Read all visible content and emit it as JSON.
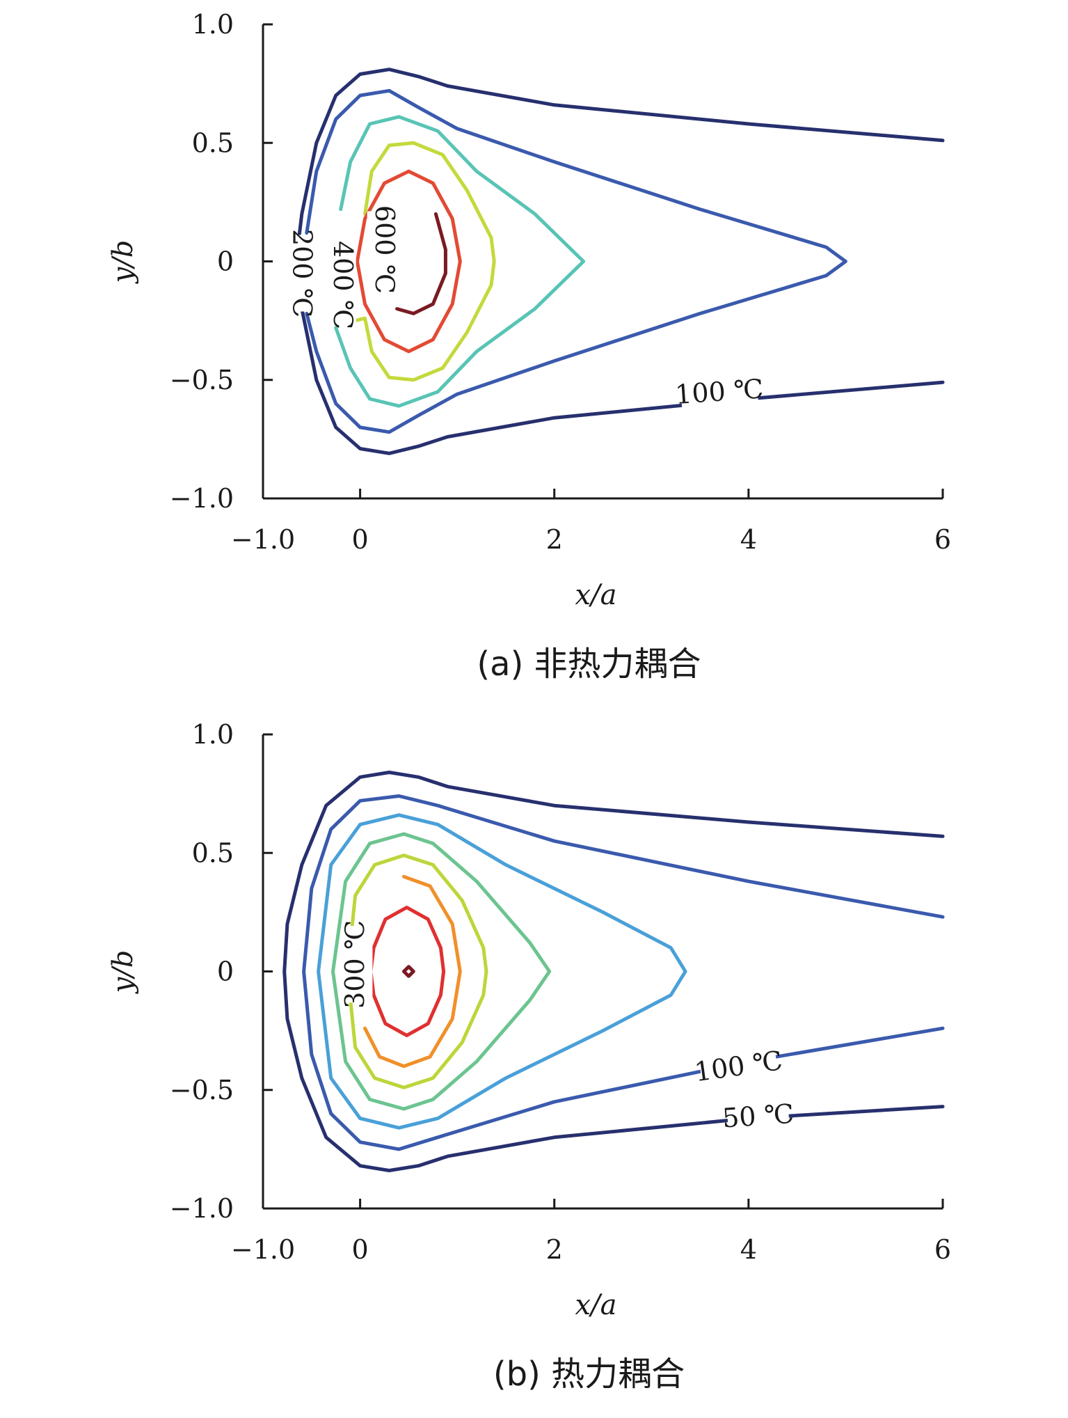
{
  "chart_data": [
    {
      "type": "contour",
      "caption": "(a) 非热力耦合",
      "xlabel": "x/a",
      "ylabel": "y/b",
      "xlim": [
        -1.0,
        6.0
      ],
      "ylim": [
        -1.0,
        1.0
      ],
      "xticks": [
        {
          "value": -1.0,
          "label": "−1.0"
        },
        {
          "value": 0,
          "label": "0"
        },
        {
          "value": 2,
          "label": "2"
        },
        {
          "value": 4,
          "label": "4"
        },
        {
          "value": 6,
          "label": "6"
        }
      ],
      "yticks": [
        {
          "value": 1.0,
          "label": "1.0"
        },
        {
          "value": 0.5,
          "label": "0.5"
        },
        {
          "value": 0,
          "label": "0"
        },
        {
          "value": -0.5,
          "label": "−0.5"
        },
        {
          "value": -1.0,
          "label": "−1.0"
        }
      ],
      "contours": [
        {
          "color": "#27306e",
          "points": [
            [
              6,
              0.51
            ],
            [
              4,
              0.58
            ],
            [
              2,
              0.66
            ],
            [
              0.9,
              0.74
            ],
            [
              0.6,
              0.78
            ],
            [
              0.3,
              0.81
            ],
            [
              0,
              0.79
            ],
            [
              -0.25,
              0.7
            ],
            [
              -0.45,
              0.5
            ],
            [
              -0.6,
              0.2
            ],
            [
              -0.66,
              0
            ],
            [
              -0.6,
              -0.2
            ],
            [
              -0.45,
              -0.5
            ],
            [
              -0.25,
              -0.7
            ],
            [
              0,
              -0.79
            ],
            [
              0.3,
              -0.81
            ],
            [
              0.6,
              -0.78
            ],
            [
              0.9,
              -0.74
            ],
            [
              2,
              -0.66
            ],
            [
              4,
              -0.58
            ],
            [
              6,
              -0.51
            ]
          ]
        },
        {
          "color": "#3a5aad",
          "points": [
            [
              -0.55,
              0.12
            ],
            [
              -0.45,
              0.38
            ],
            [
              -0.25,
              0.6
            ],
            [
              0,
              0.7
            ],
            [
              0.3,
              0.72
            ],
            [
              0.6,
              0.65
            ],
            [
              1,
              0.56
            ],
            [
              2,
              0.42
            ],
            [
              3.5,
              0.22
            ],
            [
              4.8,
              0.06
            ],
            [
              5,
              0
            ],
            [
              4.8,
              -0.06
            ],
            [
              3.5,
              -0.22
            ],
            [
              2,
              -0.42
            ],
            [
              1,
              -0.56
            ],
            [
              0.6,
              -0.65
            ],
            [
              0.3,
              -0.72
            ],
            [
              0,
              -0.7
            ],
            [
              -0.25,
              -0.6
            ],
            [
              -0.45,
              -0.38
            ],
            [
              -0.55,
              -0.22
            ]
          ]
        },
        {
          "color": "#58c4b5",
          "points": [
            [
              -0.2,
              0.22
            ],
            [
              -0.1,
              0.42
            ],
            [
              0.1,
              0.58
            ],
            [
              0.4,
              0.61
            ],
            [
              0.8,
              0.55
            ],
            [
              1.2,
              0.38
            ],
            [
              1.8,
              0.2
            ],
            [
              2.3,
              0
            ],
            [
              1.8,
              -0.2
            ],
            [
              1.2,
              -0.38
            ],
            [
              0.8,
              -0.55
            ],
            [
              0.4,
              -0.61
            ],
            [
              0.1,
              -0.58
            ],
            [
              -0.1,
              -0.45
            ],
            [
              -0.25,
              -0.28
            ]
          ]
        },
        {
          "color": "#c4d93c",
          "points": [
            [
              0.05,
              0.2
            ],
            [
              0.12,
              0.38
            ],
            [
              0.3,
              0.49
            ],
            [
              0.55,
              0.5
            ],
            [
              0.85,
              0.45
            ],
            [
              1.1,
              0.3
            ],
            [
              1.35,
              0.1
            ],
            [
              1.38,
              0
            ],
            [
              1.35,
              -0.1
            ],
            [
              1.1,
              -0.3
            ],
            [
              0.85,
              -0.45
            ],
            [
              0.55,
              -0.5
            ],
            [
              0.3,
              -0.49
            ],
            [
              0.12,
              -0.38
            ],
            [
              0.05,
              -0.24
            ],
            [
              -0.05,
              -0.25
            ]
          ]
        },
        {
          "color": "#e34a33",
          "points": [
            [
              0.5,
              0.38
            ],
            [
              0.75,
              0.33
            ],
            [
              0.95,
              0.18
            ],
            [
              1.03,
              0
            ],
            [
              0.95,
              -0.18
            ],
            [
              0.75,
              -0.33
            ],
            [
              0.5,
              -0.38
            ],
            [
              0.25,
              -0.33
            ],
            [
              0.05,
              -0.18
            ],
            [
              -0.03,
              0
            ],
            [
              0.05,
              0.18
            ],
            [
              0.25,
              0.33
            ],
            [
              0.5,
              0.38
            ]
          ]
        },
        {
          "color": "#7a1a22",
          "points": [
            [
              0.78,
              0.2
            ],
            [
              0.88,
              0.05
            ],
            [
              0.88,
              -0.05
            ],
            [
              0.75,
              -0.18
            ],
            [
              0.55,
              -0.22
            ],
            [
              0.38,
              -0.2
            ]
          ]
        }
      ],
      "labels": [
        {
          "text": "100 ℃",
          "x": 3.7,
          "y": -0.56,
          "rotation": -4
        },
        {
          "text": "200 ℃",
          "x": -0.62,
          "y": -0.05,
          "rotation": 90
        },
        {
          "text": "400 ℃",
          "x": -0.2,
          "y": -0.1,
          "rotation": 90
        },
        {
          "text": "600 ℃",
          "x": 0.23,
          "y": 0.05,
          "rotation": 90
        }
      ]
    },
    {
      "type": "contour",
      "caption": "(b) 热力耦合",
      "xlabel": "x/a",
      "ylabel": "y/b",
      "xlim": [
        -1.0,
        6.0
      ],
      "ylim": [
        -1.0,
        1.0
      ],
      "xticks": [
        {
          "value": -1.0,
          "label": "−1.0"
        },
        {
          "value": 0,
          "label": "0"
        },
        {
          "value": 2,
          "label": "2"
        },
        {
          "value": 4,
          "label": "4"
        },
        {
          "value": 6,
          "label": "6"
        }
      ],
      "yticks": [
        {
          "value": 1.0,
          "label": "1.0"
        },
        {
          "value": 0.5,
          "label": "0.5"
        },
        {
          "value": 0,
          "label": "0"
        },
        {
          "value": -0.5,
          "label": "−0.5"
        },
        {
          "value": -1.0,
          "label": "−1.0"
        }
      ],
      "contours": [
        {
          "color": "#27306e",
          "points": [
            [
              6,
              0.57
            ],
            [
              4,
              0.63
            ],
            [
              2,
              0.7
            ],
            [
              0.9,
              0.78
            ],
            [
              0.6,
              0.82
            ],
            [
              0.3,
              0.84
            ],
            [
              0,
              0.82
            ],
            [
              -0.35,
              0.7
            ],
            [
              -0.6,
              0.45
            ],
            [
              -0.75,
              0.2
            ],
            [
              -0.78,
              0
            ],
            [
              -0.75,
              -0.2
            ],
            [
              -0.6,
              -0.45
            ],
            [
              -0.35,
              -0.7
            ],
            [
              0,
              -0.82
            ],
            [
              0.3,
              -0.84
            ],
            [
              0.6,
              -0.82
            ],
            [
              0.9,
              -0.78
            ],
            [
              2,
              -0.7
            ],
            [
              4,
              -0.62
            ],
            [
              6,
              -0.57
            ]
          ]
        },
        {
          "color": "#3a5aad",
          "points": [
            [
              6,
              0.23
            ],
            [
              4,
              0.38
            ],
            [
              2,
              0.55
            ],
            [
              0.8,
              0.7
            ],
            [
              0.4,
              0.74
            ],
            [
              0,
              0.72
            ],
            [
              -0.3,
              0.6
            ],
            [
              -0.5,
              0.35
            ],
            [
              -0.58,
              0
            ],
            [
              -0.5,
              -0.35
            ],
            [
              -0.3,
              -0.6
            ],
            [
              0,
              -0.72
            ],
            [
              0.4,
              -0.75
            ],
            [
              0.8,
              -0.7
            ],
            [
              2,
              -0.55
            ],
            [
              4,
              -0.38
            ],
            [
              6,
              -0.24
            ]
          ]
        },
        {
          "color": "#4aa0d8",
          "points": [
            [
              0.4,
              0.66
            ],
            [
              0.8,
              0.62
            ],
            [
              1.5,
              0.45
            ],
            [
              2.5,
              0.25
            ],
            [
              3.2,
              0.1
            ],
            [
              3.35,
              0
            ],
            [
              3.2,
              -0.1
            ],
            [
              2.5,
              -0.25
            ],
            [
              1.5,
              -0.45
            ],
            [
              0.8,
              -0.62
            ],
            [
              0.4,
              -0.66
            ],
            [
              0,
              -0.62
            ],
            [
              -0.3,
              -0.45
            ],
            [
              -0.43,
              0
            ],
            [
              -0.3,
              0.45
            ],
            [
              0,
              0.62
            ],
            [
              0.4,
              0.66
            ]
          ]
        },
        {
          "color": "#6cc48f",
          "points": [
            [
              0.45,
              0.58
            ],
            [
              0.75,
              0.54
            ],
            [
              1.2,
              0.38
            ],
            [
              1.75,
              0.12
            ],
            [
              1.95,
              0
            ],
            [
              1.75,
              -0.12
            ],
            [
              1.2,
              -0.38
            ],
            [
              0.75,
              -0.54
            ],
            [
              0.45,
              -0.58
            ],
            [
              0.1,
              -0.54
            ],
            [
              -0.15,
              -0.38
            ],
            [
              -0.28,
              0
            ],
            [
              -0.15,
              0.38
            ],
            [
              0.1,
              0.54
            ],
            [
              0.45,
              0.58
            ]
          ]
        },
        {
          "color": "#bcd63a",
          "points": [
            [
              0.45,
              0.49
            ],
            [
              0.75,
              0.45
            ],
            [
              1.05,
              0.3
            ],
            [
              1.27,
              0.1
            ],
            [
              1.3,
              0
            ],
            [
              1.27,
              -0.1
            ],
            [
              1.05,
              -0.3
            ],
            [
              0.75,
              -0.45
            ],
            [
              0.45,
              -0.49
            ],
            [
              0.15,
              -0.45
            ],
            [
              -0.05,
              -0.32
            ],
            [
              -0.13,
              0
            ],
            [
              -0.05,
              0.32
            ],
            [
              0.15,
              0.45
            ],
            [
              0.45,
              0.49
            ]
          ]
        },
        {
          "color": "#f0902a",
          "points": [
            [
              0.45,
              0.4
            ],
            [
              0.72,
              0.36
            ],
            [
              0.95,
              0.2
            ],
            [
              1.03,
              0
            ],
            [
              0.95,
              -0.2
            ],
            [
              0.72,
              -0.36
            ],
            [
              0.45,
              -0.4
            ],
            [
              0.2,
              -0.36
            ],
            [
              0.05,
              -0.24
            ]
          ]
        },
        {
          "color": "#e03030",
          "points": [
            [
              0.48,
              0.27
            ],
            [
              0.7,
              0.22
            ],
            [
              0.83,
              0.1
            ],
            [
              0.86,
              0
            ],
            [
              0.83,
              -0.1
            ],
            [
              0.7,
              -0.22
            ],
            [
              0.48,
              -0.27
            ],
            [
              0.26,
              -0.22
            ],
            [
              0.14,
              -0.1
            ],
            [
              0.11,
              0
            ],
            [
              0.14,
              0.1
            ],
            [
              0.26,
              0.22
            ],
            [
              0.48,
              0.27
            ]
          ]
        },
        {
          "color": "#7a1a22",
          "points": [
            [
              0.5,
              0.02
            ],
            [
              0.55,
              0
            ],
            [
              0.5,
              -0.02
            ],
            [
              0.45,
              0
            ],
            [
              0.5,
              0.02
            ]
          ]
        }
      ],
      "labels": [
        {
          "text": "100 ℃",
          "x": 3.9,
          "y": -0.41,
          "rotation": -8
        },
        {
          "text": "50 ℃",
          "x": 4.1,
          "y": -0.62,
          "rotation": -4
        },
        {
          "text": "300 ℃",
          "x": -0.03,
          "y": 0.03,
          "rotation": -90
        }
      ]
    }
  ]
}
